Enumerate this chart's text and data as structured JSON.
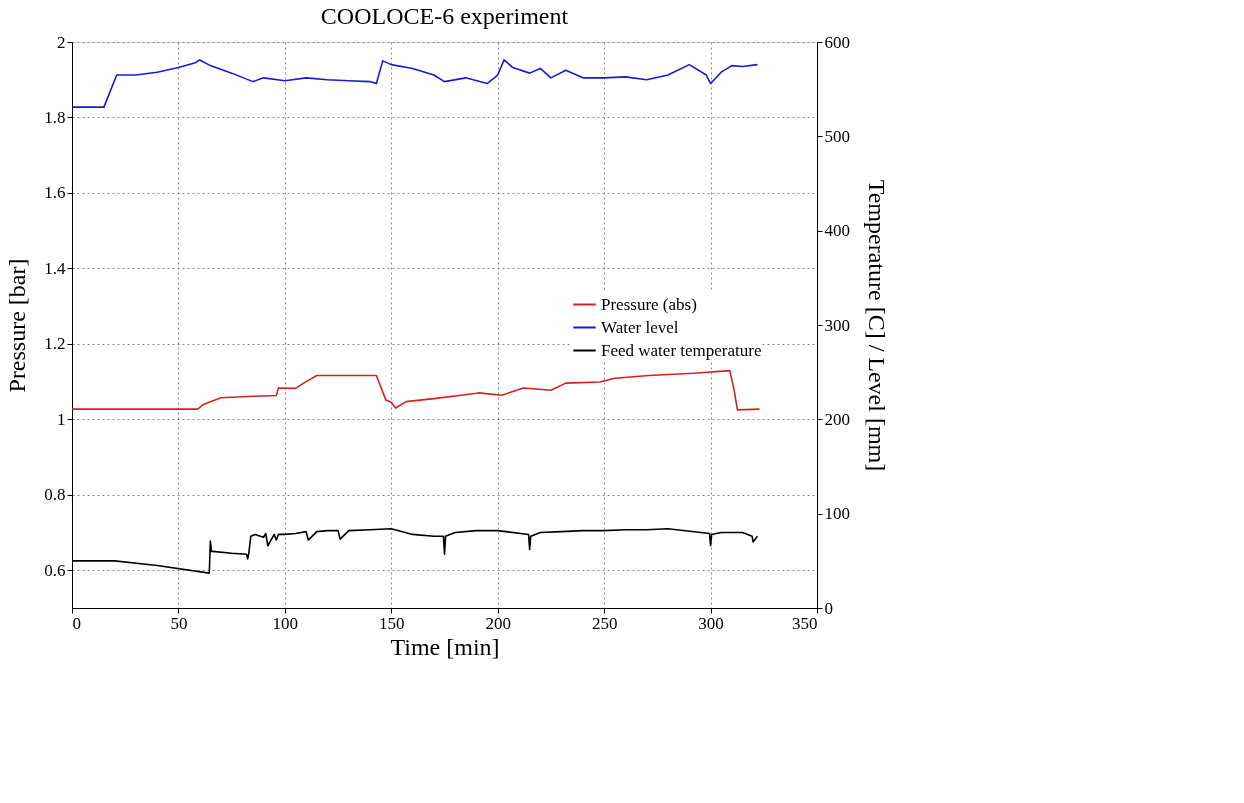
{
  "chart_data": {
    "type": "line",
    "title": "COOLOCE-6 experiment",
    "xlabel": "Time [min]",
    "ylabel": "Pressure [bar]",
    "y2label": "Temperature [C] / Level [mm]",
    "xlim": [
      0,
      350
    ],
    "xticks": [
      0,
      50,
      100,
      150,
      200,
      250,
      300,
      350
    ],
    "ylim": [
      0.5,
      2
    ],
    "yticks": [
      0.6,
      0.8,
      1,
      1.2,
      1.4,
      1.6,
      1.8,
      2
    ],
    "y2lim": [
      0,
      600
    ],
    "y2ticks": [
      0,
      100,
      200,
      300,
      400,
      500,
      600
    ],
    "grid": true,
    "legend": "right",
    "line_style": "solid",
    "marker": "none",
    "series": [
      {
        "name": "Pressure (abs)",
        "color": "#d42020",
        "x": [
          0,
          20,
          40,
          59,
          62,
          70,
          85,
          96,
          97,
          105,
          110,
          115,
          130,
          143,
          147.5,
          150,
          152,
          157,
          170,
          180,
          191,
          202,
          212,
          225,
          232,
          248,
          255,
          271,
          292,
          309,
          311,
          312.6,
          323
        ],
        "values": [
          1.027,
          1.027,
          1.027,
          1.027,
          1.04,
          1.057,
          1.061,
          1.063,
          1.083,
          1.082,
          1.1,
          1.116,
          1.116,
          1.116,
          1.051,
          1.045,
          1.03,
          1.047,
          1.055,
          1.062,
          1.07,
          1.064,
          1.083,
          1.077,
          1.096,
          1.099,
          1.109,
          1.116,
          1.122,
          1.129,
          1.08,
          1.025,
          1.027
        ]
      },
      {
        "name": "Water level",
        "color": "#1a1ad0",
        "axis": "y2",
        "x": [
          0,
          15,
          21,
          30,
          40,
          50,
          58,
          60,
          65,
          75,
          85,
          90,
          100,
          110,
          120,
          130,
          140,
          143,
          146,
          150,
          160,
          170,
          175,
          185,
          195,
          200,
          203,
          207,
          215,
          220,
          225,
          232,
          240,
          250,
          260,
          270,
          280,
          290,
          298,
          300,
          305,
          310,
          315,
          322
        ],
        "values": [
          531,
          531,
          565,
          565,
          568,
          573,
          578,
          581,
          575,
          567,
          558,
          562,
          559,
          562,
          560,
          559,
          558,
          556,
          580,
          576,
          572,
          565,
          558,
          562,
          556,
          565,
          581,
          573,
          567,
          572,
          562,
          570,
          562,
          562,
          563,
          560,
          565,
          576,
          565,
          556,
          568,
          575,
          574,
          576
        ]
      },
      {
        "name": "Feed water temperature",
        "color": "#000000",
        "axis": "y2",
        "x": [
          0,
          20,
          40,
          64.5,
          65,
          65.5,
          66,
          75,
          82,
          82.5,
          83,
          84,
          86,
          90,
          91,
          92,
          95,
          96,
          97,
          100,
          105,
          110,
          111,
          115,
          120,
          125,
          126,
          130,
          140,
          150,
          160,
          170,
          174.5,
          175,
          175.5,
          180,
          190,
          200,
          214.5,
          215,
          215.5,
          220,
          230,
          240,
          250,
          260,
          270,
          280,
          299.5,
          300,
          300.5,
          305,
          315,
          319.5,
          320,
          322
        ],
        "values": [
          50,
          50,
          45,
          37,
          71,
          60,
          60,
          58,
          57,
          52,
          57,
          76,
          78,
          75,
          79,
          66,
          78,
          72,
          78,
          78,
          79,
          81,
          72,
          81,
          82,
          82,
          73,
          82,
          83,
          84,
          78,
          76,
          76,
          57,
          76,
          80,
          82,
          82,
          78,
          62,
          76,
          80,
          81,
          82,
          82,
          83,
          83,
          84,
          79,
          66,
          78,
          80,
          80,
          76,
          70,
          76
        ]
      }
    ]
  }
}
